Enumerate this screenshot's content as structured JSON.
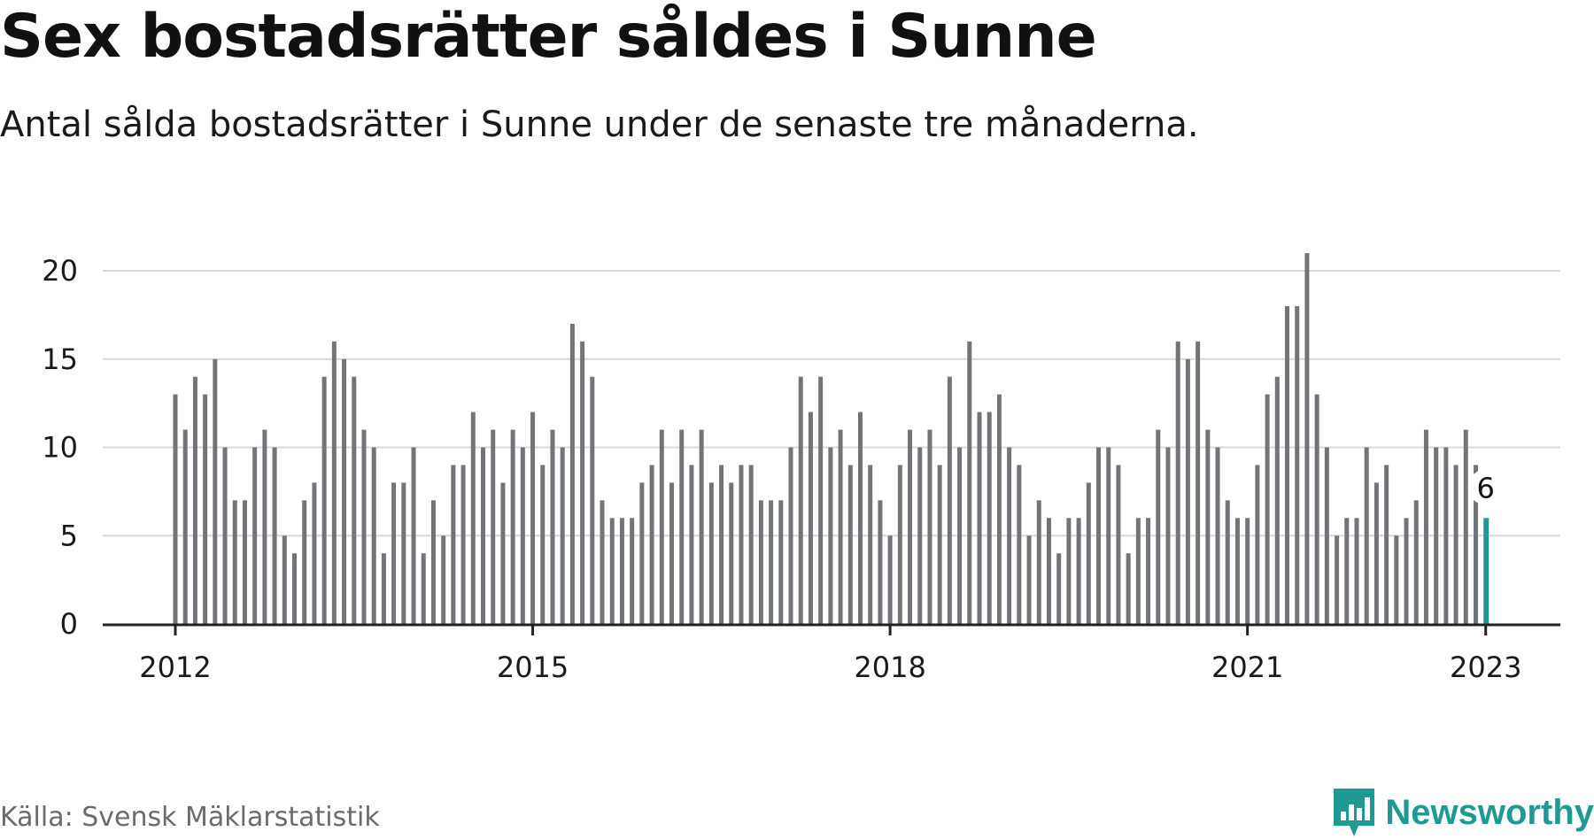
{
  "header": {
    "title": "Sex bostadsrätter såldes i Sunne",
    "subtitle": "Antal sålda bostadsrätter i Sunne under de senaste tre månaderna."
  },
  "footer": {
    "source": "Källa: Svensk Mäklarstatistik",
    "brand": "Newsworthy",
    "brand_icon": "newsworthy-logo-icon"
  },
  "colors": {
    "bar": "#737478",
    "highlight": "#1f9a93",
    "grid": "#d9d9d9",
    "axis": "#222222"
  },
  "chart_data": {
    "type": "bar",
    "x_start": "2012-01",
    "frequency": "monthly",
    "values": [
      13,
      11,
      14,
      13,
      15,
      10,
      7,
      7,
      10,
      11,
      10,
      5,
      4,
      7,
      8,
      14,
      16,
      15,
      14,
      11,
      10,
      4,
      8,
      8,
      10,
      4,
      7,
      5,
      9,
      9,
      12,
      10,
      11,
      8,
      11,
      10,
      12,
      9,
      11,
      10,
      17,
      16,
      14,
      7,
      6,
      6,
      6,
      8,
      9,
      11,
      8,
      11,
      9,
      11,
      8,
      9,
      8,
      9,
      9,
      7,
      7,
      7,
      10,
      14,
      12,
      14,
      10,
      11,
      9,
      12,
      9,
      7,
      5,
      9,
      11,
      10,
      11,
      9,
      14,
      10,
      16,
      12,
      12,
      13,
      10,
      9,
      5,
      7,
      6,
      4,
      6,
      6,
      8,
      10,
      10,
      9,
      4,
      6,
      6,
      11,
      10,
      16,
      15,
      16,
      11,
      10,
      7,
      6,
      6,
      9,
      13,
      14,
      18,
      18,
      21,
      13,
      10,
      5,
      6,
      6,
      10,
      8,
      9,
      5,
      6,
      7,
      11,
      10,
      10,
      9,
      11,
      9,
      6
    ],
    "highlight_last": true,
    "highlight_label": "6",
    "x_ticks": [
      {
        "label": "2012",
        "index": 0
      },
      {
        "label": "2015",
        "index": 36
      },
      {
        "label": "2018",
        "index": 72
      },
      {
        "label": "2021",
        "index": 108
      },
      {
        "label": "2023",
        "index": 132
      }
    ],
    "y_ticks": [
      0,
      5,
      10,
      15,
      20
    ],
    "ylim": [
      0,
      22
    ],
    "grid": true
  }
}
